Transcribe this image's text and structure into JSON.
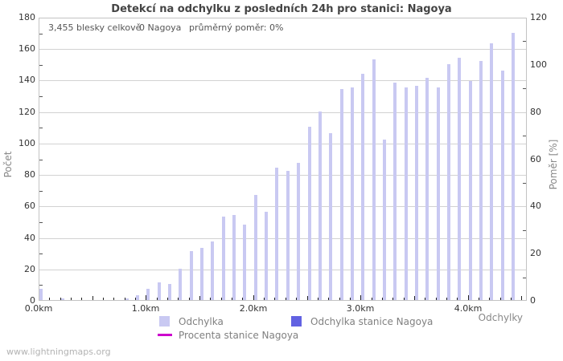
{
  "title": "Detekcí na odchylku z posledních 24h pro stanici: Nagoya",
  "stats": {
    "total_label": "3,455 blesky celkově",
    "station_label": "0 Nagoya",
    "ratio_label": "průměrný poměr: 0%"
  },
  "axes": {
    "left_label": "Počet",
    "right_label": "Poměr [%]",
    "x_label": "Odchylky"
  },
  "legend": {
    "items": [
      {
        "label": "Odchylka",
        "swatch": "#c9c9f2",
        "kind": "square"
      },
      {
        "label": "Odchylka stanice Nagoya",
        "swatch": "#6262e2",
        "kind": "square"
      },
      {
        "label": "Procenta stanice Nagoya",
        "swatch": "#cc00cc",
        "kind": "line"
      }
    ]
  },
  "footer": "www.lightningmaps.org",
  "colors": {
    "bar": "#c9c9f2",
    "station_bar": "#6262e2",
    "percent_line": "#cc00cc",
    "grid": "#d2d2d2",
    "border": "#c3c3c3",
    "tick": "#222222",
    "tick_label": "#333333",
    "title": "#444444",
    "stats_text": "#555555",
    "axis_label": "#888888",
    "legend_text": "#808080",
    "footer_text": "#b3b3b3"
  },
  "chart_data": {
    "type": "bar",
    "title": "Detekcí na odchylku z posledních 24h pro stanici: Nagoya",
    "xlabel": "Odchylky",
    "ylabel": "Počet",
    "ylabel_right": "Poměr [%]",
    "x_unit": "km",
    "x_km": [
      0.0,
      0.1,
      0.2,
      0.3,
      0.4,
      0.5,
      0.6,
      0.7,
      0.8,
      0.9,
      1.0,
      1.1,
      1.2,
      1.3,
      1.4,
      1.5,
      1.6,
      1.7,
      1.8,
      1.9,
      2.0,
      2.1,
      2.2,
      2.3,
      2.4,
      2.5,
      2.6,
      2.7,
      2.8,
      2.9,
      3.0,
      3.1,
      3.2,
      3.3,
      3.4,
      3.5,
      3.6,
      3.7,
      3.8,
      3.9,
      4.0,
      4.1,
      4.2,
      4.3,
      4.4
    ],
    "x_tick_labels": [
      "0.0km",
      "1.0km",
      "2.0km",
      "3.0km",
      "4.0km"
    ],
    "xlim_km": [
      0,
      4.55
    ],
    "ylim_left": [
      0,
      180
    ],
    "ytick_step_left": 20,
    "ylim_right": [
      0,
      120
    ],
    "ytick_step_right": 20,
    "grid": true,
    "legend_position": "bottom",
    "series": [
      {
        "name": "Odchylka",
        "type": "bar",
        "axis": "left",
        "values": [
          7,
          0,
          1,
          0,
          0,
          0,
          0,
          0,
          1,
          3,
          7,
          11,
          10,
          20,
          31,
          33,
          37,
          53,
          54,
          48,
          67,
          56,
          84,
          82,
          87,
          110,
          120,
          106,
          134,
          135,
          144,
          153,
          102,
          138,
          135,
          136,
          141,
          135,
          150,
          154,
          139,
          152,
          163,
          146,
          170
        ]
      },
      {
        "name": "Odchylka stanice Nagoya",
        "type": "bar",
        "axis": "left",
        "values": [
          0,
          0,
          0,
          0,
          0,
          0,
          0,
          0,
          0,
          0,
          0,
          0,
          0,
          0,
          0,
          0,
          0,
          0,
          0,
          0,
          0,
          0,
          0,
          0,
          0,
          0,
          0,
          0,
          0,
          0,
          0,
          0,
          0,
          0,
          0,
          0,
          0,
          0,
          0,
          0,
          0,
          0,
          0,
          0,
          0
        ]
      },
      {
        "name": "Procenta stanice Nagoya",
        "type": "line",
        "axis": "right",
        "values": [
          0,
          0,
          0,
          0,
          0,
          0,
          0,
          0,
          0,
          0,
          0,
          0,
          0,
          0,
          0,
          0,
          0,
          0,
          0,
          0,
          0,
          0,
          0,
          0,
          0,
          0,
          0,
          0,
          0,
          0,
          0,
          0,
          0,
          0,
          0,
          0,
          0,
          0,
          0,
          0,
          0,
          0,
          0,
          0,
          0
        ]
      }
    ],
    "total_detections": 3455,
    "station_detections": 0,
    "average_ratio_percent": 0
  }
}
